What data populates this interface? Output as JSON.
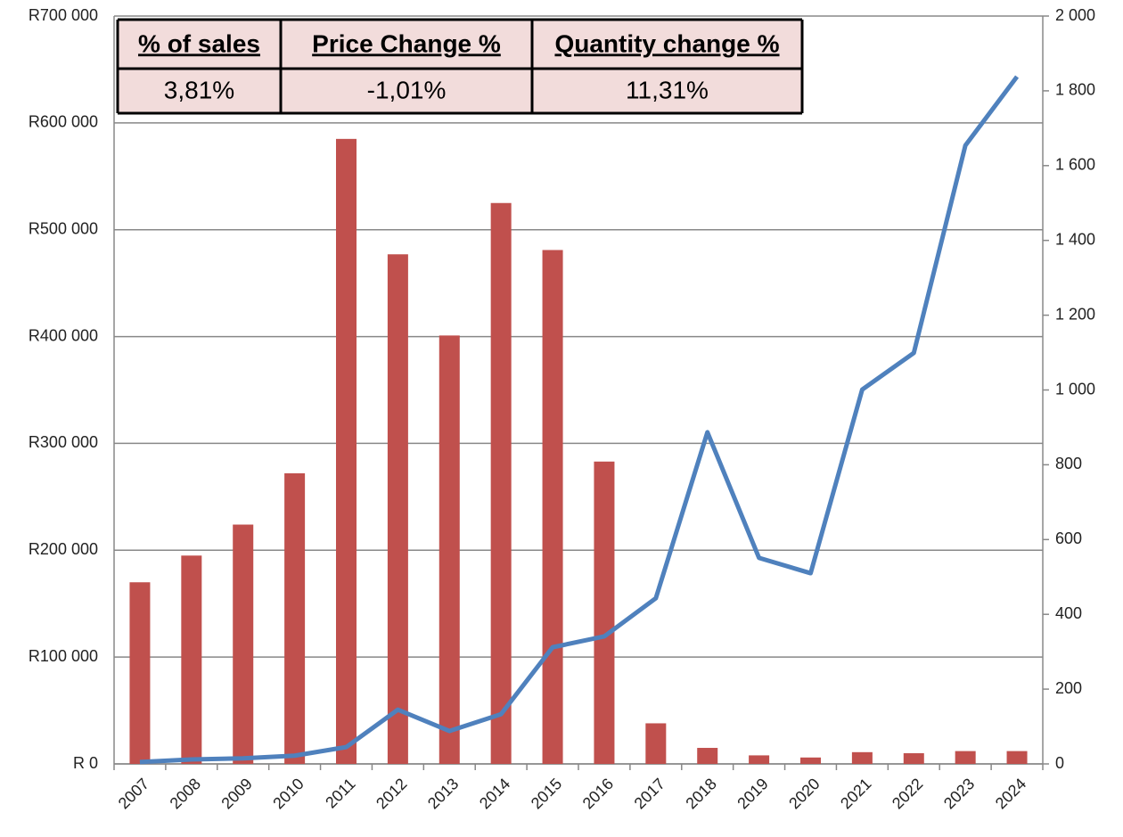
{
  "chart_data": {
    "type": "bar_line",
    "categories": [
      "2007",
      "2008",
      "2009",
      "2010",
      "2011",
      "2012",
      "2013",
      "2014",
      "2015",
      "2016",
      "2017",
      "2018",
      "2019",
      "2020",
      "2021",
      "2022",
      "2023",
      "2024"
    ],
    "series": [
      {
        "type": "bar",
        "color": "#c0504d",
        "values": [
          170000,
          195000,
          224000,
          272000,
          585000,
          477000,
          401000,
          525000,
          481000,
          283000,
          38000,
          15000,
          8000,
          6000,
          11000,
          10000,
          12000,
          12000
        ]
      },
      {
        "type": "line",
        "axis": "y2",
        "color": "#4f81bd",
        "values": [
          5,
          12,
          15,
          22,
          45,
          145,
          88,
          133,
          312,
          341,
          443,
          887,
          551,
          510,
          1001,
          1099,
          1654,
          1838
        ]
      }
    ],
    "ylim": [
      0,
      700000
    ],
    "yticks": [
      {
        "value": 0,
        "label": "R 0"
      },
      {
        "value": 100000,
        "label": "R100 000"
      },
      {
        "value": 200000,
        "label": "R200 000"
      },
      {
        "value": 300000,
        "label": "R300 000"
      },
      {
        "value": 400000,
        "label": "R400 000"
      },
      {
        "value": 500000,
        "label": "R500 000"
      },
      {
        "value": 600000,
        "label": "R600 000"
      },
      {
        "value": 700000,
        "label": "R700 000"
      }
    ],
    "y2lim": [
      0,
      2000
    ],
    "y2ticks": [
      0,
      200,
      400,
      600,
      800,
      {
        "value": 1000,
        "label": "1 000"
      },
      {
        "value": 1200,
        "label": "1 200"
      },
      {
        "value": 1400,
        "label": "1 400"
      },
      {
        "value": 1600,
        "label": "1 600"
      },
      {
        "value": 1800,
        "label": "1 800"
      },
      {
        "value": 2000,
        "label": "2 000"
      }
    ],
    "grid": true,
    "table": {
      "header": [
        "% of sales",
        "Price Change %",
        "Quantity change %"
      ],
      "rows": [
        [
          "3,81%",
          "-1,01%",
          "11,31%"
        ]
      ]
    }
  }
}
